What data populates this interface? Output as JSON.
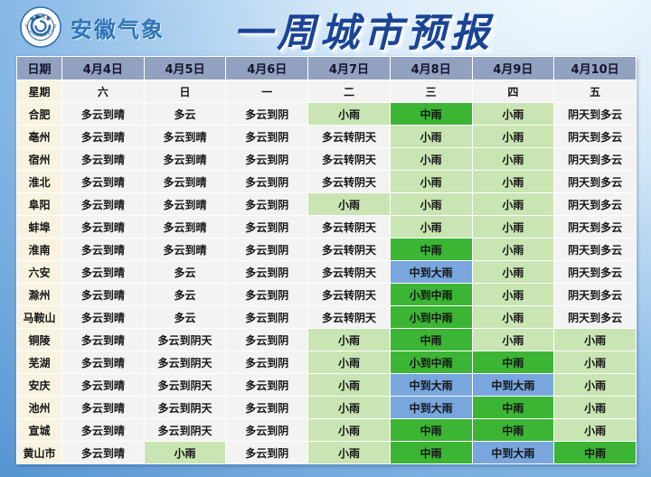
{
  "header": {
    "agency_name": "安徽气象",
    "title": "一周城市预报",
    "logo_icon": "anhui-meteorological-bureau-emblem",
    "logo_ring_text_top": "安徽气象",
    "logo_ring_text_bottom": "ANHUI METEOROLOGICAL BUREAU"
  },
  "colors": {
    "background_light": "#f2f9fe",
    "background_dark": "#5896d3",
    "title_color": "#1a4496",
    "agency_color": "#2e74b7",
    "date_header_bg": "#93a1c0",
    "city_column_bg": "#f8f3e0",
    "cell_default_bg": "#f3f3f3",
    "grid_line": "#ffffff",
    "level_colors": {
      "lg": "#c9e5b3",
      "dg": "#3cb434",
      "bl": "#78a6dd"
    },
    "level_names": {
      "lg": "light-rain-green",
      "dg": "moderate-rain-green",
      "bl": "heavy-rain-blue"
    }
  },
  "chart_data": {
    "type": "table",
    "title": "一周城市预报",
    "corner_labels": {
      "date": "日期",
      "week": "星期"
    },
    "dates": [
      "4月4日",
      "4月5日",
      "4月6日",
      "4月7日",
      "4月8日",
      "4月9日",
      "4月10日"
    ],
    "weekdays": [
      "六",
      "日",
      "一",
      "二",
      "三",
      "四",
      "五"
    ],
    "rows": [
      {
        "city": "合肥",
        "cells": [
          [
            "多云到晴",
            ""
          ],
          [
            "多云",
            ""
          ],
          [
            "多云到阴",
            ""
          ],
          [
            "小雨",
            "lg"
          ],
          [
            "中雨",
            "dg"
          ],
          [
            "小雨",
            "lg"
          ],
          [
            "阴天到多云",
            ""
          ]
        ]
      },
      {
        "city": "亳州",
        "cells": [
          [
            "多云到晴",
            ""
          ],
          [
            "多云到晴",
            ""
          ],
          [
            "多云到阴",
            ""
          ],
          [
            "多云转阴天",
            ""
          ],
          [
            "小雨",
            "lg"
          ],
          [
            "小雨",
            "lg"
          ],
          [
            "阴天到多云",
            ""
          ]
        ]
      },
      {
        "city": "宿州",
        "cells": [
          [
            "多云到晴",
            ""
          ],
          [
            "多云到晴",
            ""
          ],
          [
            "多云到阴",
            ""
          ],
          [
            "多云转阴天",
            ""
          ],
          [
            "小雨",
            "lg"
          ],
          [
            "小雨",
            "lg"
          ],
          [
            "阴天到多云",
            ""
          ]
        ]
      },
      {
        "city": "淮北",
        "cells": [
          [
            "多云到晴",
            ""
          ],
          [
            "多云到晴",
            ""
          ],
          [
            "多云到阴",
            ""
          ],
          [
            "多云转阴天",
            ""
          ],
          [
            "小雨",
            "lg"
          ],
          [
            "小雨",
            "lg"
          ],
          [
            "阴天到多云",
            ""
          ]
        ]
      },
      {
        "city": "阜阳",
        "cells": [
          [
            "多云到晴",
            ""
          ],
          [
            "多云到晴",
            ""
          ],
          [
            "多云到阴",
            ""
          ],
          [
            "小雨",
            "lg"
          ],
          [
            "小雨",
            "lg"
          ],
          [
            "小雨",
            "lg"
          ],
          [
            "阴天到多云",
            ""
          ]
        ]
      },
      {
        "city": "蚌埠",
        "cells": [
          [
            "多云到晴",
            ""
          ],
          [
            "多云到晴",
            ""
          ],
          [
            "多云到阴",
            ""
          ],
          [
            "多云转阴天",
            ""
          ],
          [
            "小雨",
            "lg"
          ],
          [
            "小雨",
            "lg"
          ],
          [
            "阴天到多云",
            ""
          ]
        ]
      },
      {
        "city": "淮南",
        "cells": [
          [
            "多云到晴",
            ""
          ],
          [
            "多云到晴",
            ""
          ],
          [
            "多云到阴",
            ""
          ],
          [
            "多云转阴天",
            ""
          ],
          [
            "中雨",
            "dg"
          ],
          [
            "小雨",
            "lg"
          ],
          [
            "阴天到多云",
            ""
          ]
        ]
      },
      {
        "city": "六安",
        "cells": [
          [
            "多云到晴",
            ""
          ],
          [
            "多云",
            ""
          ],
          [
            "多云到阴",
            ""
          ],
          [
            "多云转阴天",
            ""
          ],
          [
            "中到大雨",
            "bl"
          ],
          [
            "小雨",
            "lg"
          ],
          [
            "阴天到多云",
            ""
          ]
        ]
      },
      {
        "city": "滁州",
        "cells": [
          [
            "多云到晴",
            ""
          ],
          [
            "多云",
            ""
          ],
          [
            "多云到阴",
            ""
          ],
          [
            "多云转阴天",
            ""
          ],
          [
            "小到中雨",
            "dg"
          ],
          [
            "小雨",
            "lg"
          ],
          [
            "阴天到多云",
            ""
          ]
        ]
      },
      {
        "city": "马鞍山",
        "cells": [
          [
            "多云到晴",
            ""
          ],
          [
            "多云",
            ""
          ],
          [
            "多云到阴",
            ""
          ],
          [
            "多云转阴天",
            ""
          ],
          [
            "小到中雨",
            "dg"
          ],
          [
            "小雨",
            "lg"
          ],
          [
            "阴天到多云",
            ""
          ]
        ]
      },
      {
        "city": "铜陵",
        "cells": [
          [
            "多云到晴",
            ""
          ],
          [
            "多云到阴天",
            ""
          ],
          [
            "多云到阴",
            ""
          ],
          [
            "小雨",
            "lg"
          ],
          [
            "中雨",
            "dg"
          ],
          [
            "小雨",
            "lg"
          ],
          [
            "小雨",
            "lg"
          ]
        ]
      },
      {
        "city": "芜湖",
        "cells": [
          [
            "多云到晴",
            ""
          ],
          [
            "多云到阴天",
            ""
          ],
          [
            "多云到阴",
            ""
          ],
          [
            "小雨",
            "lg"
          ],
          [
            "小到中雨",
            "dg"
          ],
          [
            "中雨",
            "dg"
          ],
          [
            "小雨",
            "lg"
          ]
        ]
      },
      {
        "city": "安庆",
        "cells": [
          [
            "多云到晴",
            ""
          ],
          [
            "多云到阴天",
            ""
          ],
          [
            "多云到阴",
            ""
          ],
          [
            "小雨",
            "lg"
          ],
          [
            "中到大雨",
            "bl"
          ],
          [
            "中到大雨",
            "bl"
          ],
          [
            "小雨",
            "lg"
          ]
        ]
      },
      {
        "city": "池州",
        "cells": [
          [
            "多云到晴",
            ""
          ],
          [
            "多云到阴天",
            ""
          ],
          [
            "多云到阴",
            ""
          ],
          [
            "小雨",
            "lg"
          ],
          [
            "中到大雨",
            "bl"
          ],
          [
            "中雨",
            "dg"
          ],
          [
            "小雨",
            "lg"
          ]
        ]
      },
      {
        "city": "宣城",
        "cells": [
          [
            "多云到晴",
            ""
          ],
          [
            "多云到阴天",
            ""
          ],
          [
            "多云到阴",
            ""
          ],
          [
            "小雨",
            "lg"
          ],
          [
            "中雨",
            "dg"
          ],
          [
            "中雨",
            "dg"
          ],
          [
            "小雨",
            "lg"
          ]
        ]
      },
      {
        "city": "黄山市",
        "cells": [
          [
            "多云到晴",
            ""
          ],
          [
            "小雨",
            "lg"
          ],
          [
            "多云到阴",
            ""
          ],
          [
            "小雨",
            "lg"
          ],
          [
            "中雨",
            "dg"
          ],
          [
            "中到大雨",
            "bl"
          ],
          [
            "中雨",
            "dg"
          ]
        ]
      }
    ]
  }
}
